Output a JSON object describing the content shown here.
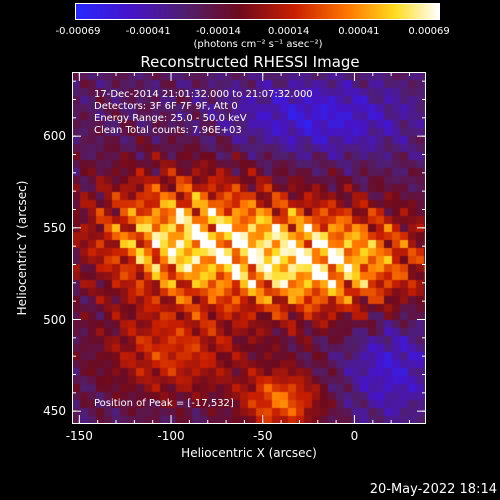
{
  "colorbar": {
    "tick_labels": [
      "-0.00069",
      "-0.00041",
      "-0.00014",
      "0.00014",
      "0.00041",
      "0.00069"
    ],
    "unit_label": "(photons cm⁻² s⁻¹ asec⁻²)",
    "range": [
      -0.00069,
      0.00069
    ]
  },
  "chart_data": {
    "type": "heatmap",
    "title": "Reconstructed RHESSI Image",
    "xlabel": "Heliocentric X (arcsec)",
    "ylabel": "Heliocentric Y (arcsec)",
    "xlim": [
      -154,
      39
    ],
    "ylim": [
      443,
      635
    ],
    "x_ticks": [
      -150,
      -100,
      -50,
      0
    ],
    "y_ticks": [
      450,
      500,
      550,
      600
    ],
    "colormap": "heat",
    "annotations": {
      "time_range": "17-Dec-2014 21:01:32.000 to 21:07:32.000",
      "detectors": "Detectors: 3F 6F 7F 9F, Att 0",
      "energy": "Energy Range: 25.0 - 50.0 keV",
      "clean": "Clean     Total counts: 7.96E+03",
      "peak": "Position of Peak = [-17,532]"
    },
    "peak_position": [
      -17,
      532
    ]
  },
  "footer": {
    "date": "20-May-2022 18:14"
  }
}
